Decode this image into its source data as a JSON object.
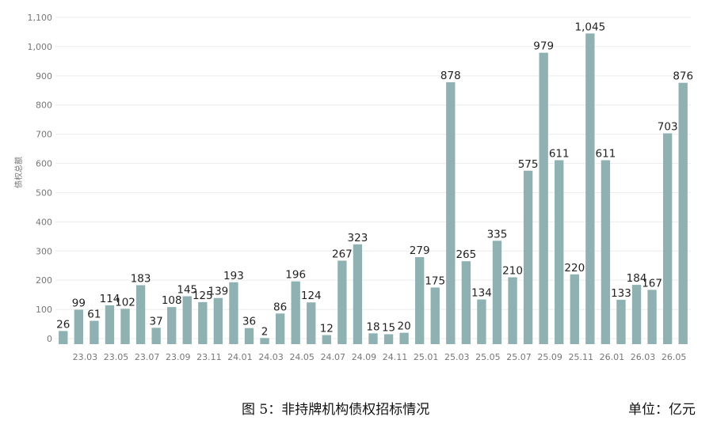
{
  "chart_data": {
    "type": "bar",
    "ylabel": "债权总额",
    "ylim": [
      0,
      1100
    ],
    "yticks": [
      0,
      100,
      200,
      300,
      400,
      500,
      600,
      700,
      800,
      900,
      1000,
      1100
    ],
    "ytick_labels": [
      "0",
      "100",
      "200",
      "300",
      "400",
      "500",
      "600",
      "700",
      "800",
      "900",
      "1,000",
      "1,100"
    ],
    "grid": true,
    "values": [
      26,
      99,
      61,
      114,
      102,
      183,
      37,
      108,
      145,
      125,
      139,
      193,
      36,
      2,
      86,
      196,
      124,
      12,
      267,
      323,
      18,
      15,
      20,
      279,
      175,
      878,
      265,
      134,
      335,
      210,
      575,
      979,
      611,
      220,
      1045,
      611,
      133,
      184,
      167,
      703,
      876
    ],
    "value_labels": [
      "26",
      "99",
      "61",
      "114",
      "102",
      "183",
      "37",
      "108",
      "145",
      "125",
      "139",
      "193",
      "36",
      "2",
      "86",
      "196",
      "124",
      "12",
      "267",
      "323",
      "18",
      "15",
      "20",
      "279",
      "175",
      "878",
      "265",
      "134",
      "335",
      "210",
      "575",
      "979",
      "611",
      "220",
      "1,045",
      "611",
      "133",
      "184",
      "167",
      "703",
      "876"
    ],
    "xtick_labels": [
      "23.03",
      "23.05",
      "23.07",
      "23.09",
      "23.11",
      "24.01",
      "24.03",
      "24.05",
      "24.07",
      "24.09",
      "24.11",
      "25.01",
      "25.03",
      "25.05",
      "25.07",
      "25.09",
      "25.11",
      "26.01",
      "26.03",
      "26.05"
    ],
    "xtick_every": 2,
    "xtick_start": 1,
    "bar_color": "#8fb1b1"
  },
  "caption": "图 5：非持牌机构债权招标情况",
  "unit": "单位：亿元"
}
